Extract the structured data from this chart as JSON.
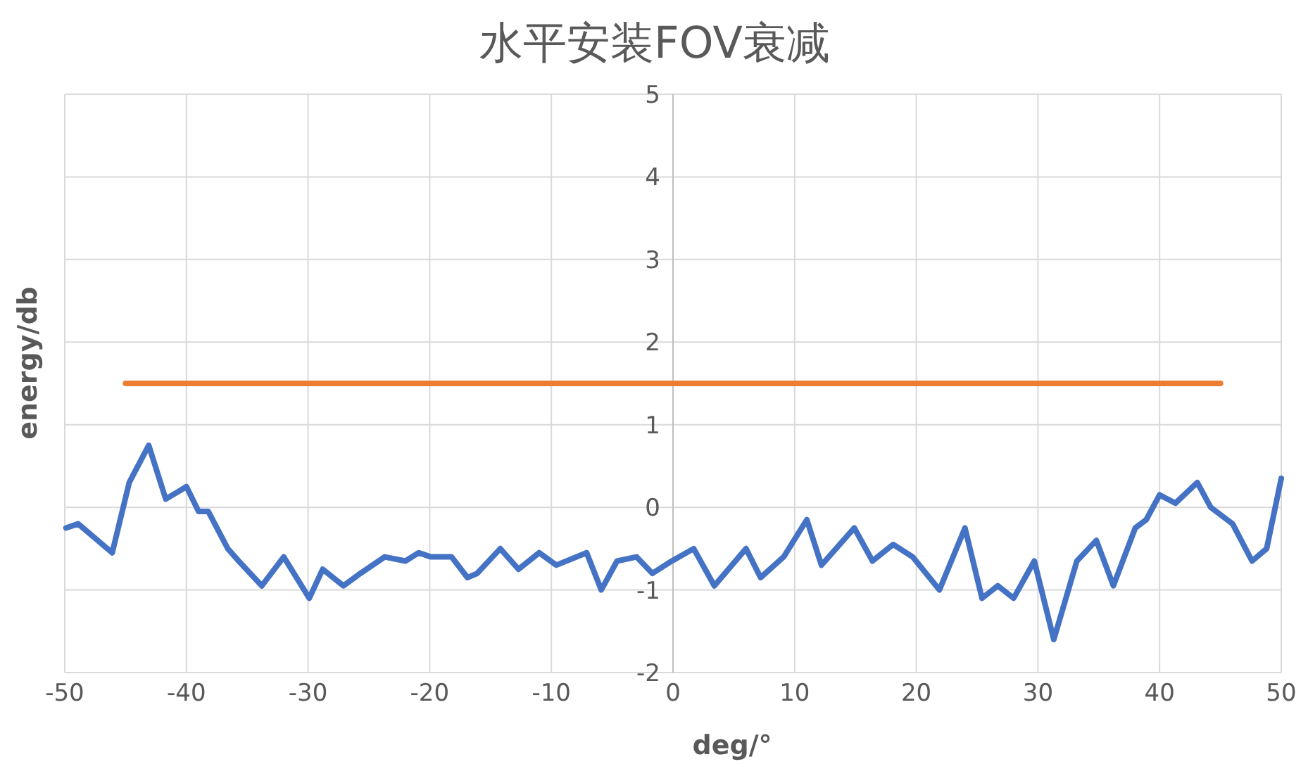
{
  "chart_data": {
    "type": "line",
    "title": "水平安装FOV衰减",
    "xlabel": "deg/°",
    "ylabel": "energy/db",
    "xlim": [
      -50,
      50
    ],
    "ylim": [
      -2,
      5
    ],
    "xticks": [
      -50,
      -40,
      -30,
      -20,
      -10,
      0,
      10,
      20,
      30,
      40,
      50
    ],
    "yticks": [
      -2,
      -1,
      0,
      1,
      2,
      3,
      4,
      5
    ],
    "grid": true,
    "marker": "none",
    "series": [
      {
        "color": "#4472c4",
        "x": [
          -49.9,
          -48.9,
          -46.1,
          -44.7,
          -43.1,
          -41.7,
          -40.0,
          -39.0,
          -38.2,
          -36.6,
          -35.7,
          -33.8,
          -32.0,
          -29.9,
          -28.8,
          -27.1,
          -25.7,
          -23.7,
          -22.0,
          -20.9,
          -19.9,
          -18.2,
          -16.9,
          -16.1,
          -14.2,
          -12.7,
          -11.0,
          -9.6,
          -7.1,
          -5.9,
          -4.6,
          -3.0,
          -1.7,
          -0.1,
          1.7,
          3.4,
          6.0,
          7.2,
          9.1,
          11.0,
          12.2,
          14.9,
          16.4,
          18.1,
          19.7,
          21.9,
          24.0,
          25.4,
          26.7,
          28.0,
          29.7,
          31.3,
          33.2,
          34.8,
          36.2,
          38.0,
          38.9,
          40.0,
          41.3,
          43.1,
          44.2,
          46.0,
          47.6,
          48.8,
          50.0
        ],
        "values": [
          -0.25,
          -0.2,
          -0.55,
          0.3,
          0.75,
          0.1,
          0.25,
          -0.05,
          -0.05,
          -0.5,
          -0.65,
          -0.95,
          -0.6,
          -1.1,
          -0.75,
          -0.95,
          -0.8,
          -0.6,
          -0.65,
          -0.55,
          -0.6,
          -0.6,
          -0.85,
          -0.8,
          -0.5,
          -0.75,
          -0.55,
          -0.7,
          -0.55,
          -1.0,
          -0.65,
          -0.6,
          -0.8,
          -0.65,
          -0.5,
          -0.95,
          -0.5,
          -0.85,
          -0.6,
          -0.15,
          -0.7,
          -0.25,
          -0.65,
          -0.45,
          -0.6,
          -1.0,
          -0.25,
          -1.1,
          -0.95,
          -1.1,
          -0.65,
          -1.6,
          -0.65,
          -0.4,
          -0.95,
          -0.25,
          -0.15,
          0.15,
          0.05,
          0.3,
          0.0,
          -0.2,
          -0.65,
          -0.5,
          0.35
        ]
      },
      {
        "color": "#ed7d31",
        "x": [
          -45,
          45
        ],
        "values": [
          1.5,
          1.5
        ]
      }
    ]
  }
}
